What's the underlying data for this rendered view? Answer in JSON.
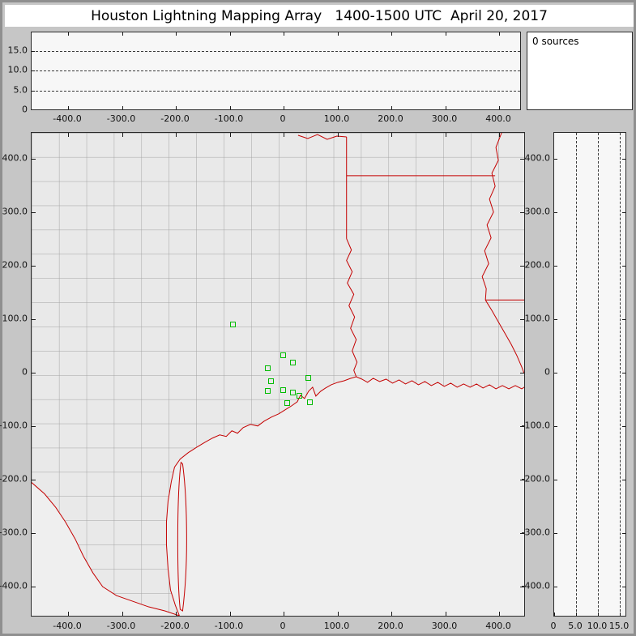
{
  "window": {
    "title": "Houston Lightning Mapping Array   1400-1500 UTC  April 20, 2017"
  },
  "sources_panel": {
    "label": "0 sources"
  },
  "chart_data": {
    "type": "scatter",
    "title": "Houston Lightning Mapping Array   1400-1500 UTC  April 20, 2017",
    "time_range": "1400-1500 UTC",
    "date": "April 20, 2017",
    "source_count_label": "0 sources",
    "grid": "dashed altitude gridlines at 5, 10 and 15 km in the altitude panels",
    "legend": "none",
    "ew_axis": {
      "unit": "km",
      "range_km": [
        -465,
        450
      ],
      "ticks": [
        {
          "v": -400,
          "label": "-400.0"
        },
        {
          "v": -300,
          "label": "-300.0"
        },
        {
          "v": -200,
          "label": "-200.0"
        },
        {
          "v": -100,
          "label": "-100.0"
        },
        {
          "v": 0,
          "label": "0"
        },
        {
          "v": 100,
          "label": "100.0"
        },
        {
          "v": 200,
          "label": "200.0"
        },
        {
          "v": 300,
          "label": "300.0"
        },
        {
          "v": 400,
          "label": "400.0"
        }
      ]
    },
    "ns_axis": {
      "unit": "km",
      "range_km": [
        -458,
        448
      ],
      "ticks": [
        {
          "v": 400,
          "label": "400.0"
        },
        {
          "v": 300,
          "label": "300.0"
        },
        {
          "v": 200,
          "label": "200.0"
        },
        {
          "v": 100,
          "label": "100.0"
        },
        {
          "v": 0,
          "label": "0"
        },
        {
          "v": -100,
          "label": "-100.0"
        },
        {
          "v": -200,
          "label": "-200.0"
        },
        {
          "v": -300,
          "label": "-300.0"
        },
        {
          "v": -400,
          "label": "-400.0"
        }
      ]
    },
    "alt_axis": {
      "unit": "km",
      "range_km": [
        0,
        19.5
      ],
      "ticks": [
        {
          "v": 0,
          "label": "0"
        },
        {
          "v": 5,
          "label": "5.0"
        },
        {
          "v": 10,
          "label": "10.0"
        },
        {
          "v": 15,
          "label": "15.0"
        }
      ]
    },
    "lightning_sources": [],
    "stations": [
      {
        "ew": -95,
        "ns": 91
      },
      {
        "ew": -2,
        "ns": 33
      },
      {
        "ew": -30,
        "ns": 9
      },
      {
        "ew": 17,
        "ns": 20
      },
      {
        "ew": -24,
        "ns": -15
      },
      {
        "ew": -30,
        "ns": -33
      },
      {
        "ew": -2,
        "ns": -32
      },
      {
        "ew": 17,
        "ns": -36
      },
      {
        "ew": 6,
        "ns": -56
      },
      {
        "ew": 29,
        "ns": -42
      },
      {
        "ew": 45,
        "ns": -9
      },
      {
        "ew": 48,
        "ns": -55
      }
    ],
    "colors": {
      "state_border": "#c40000",
      "county_line": "#a3a3a3",
      "station_marker": "#00bb00",
      "gridline": "#3a3a3a",
      "map_land": "#e9e9e9",
      "panel_bg": "#f7f7f7"
    }
  }
}
